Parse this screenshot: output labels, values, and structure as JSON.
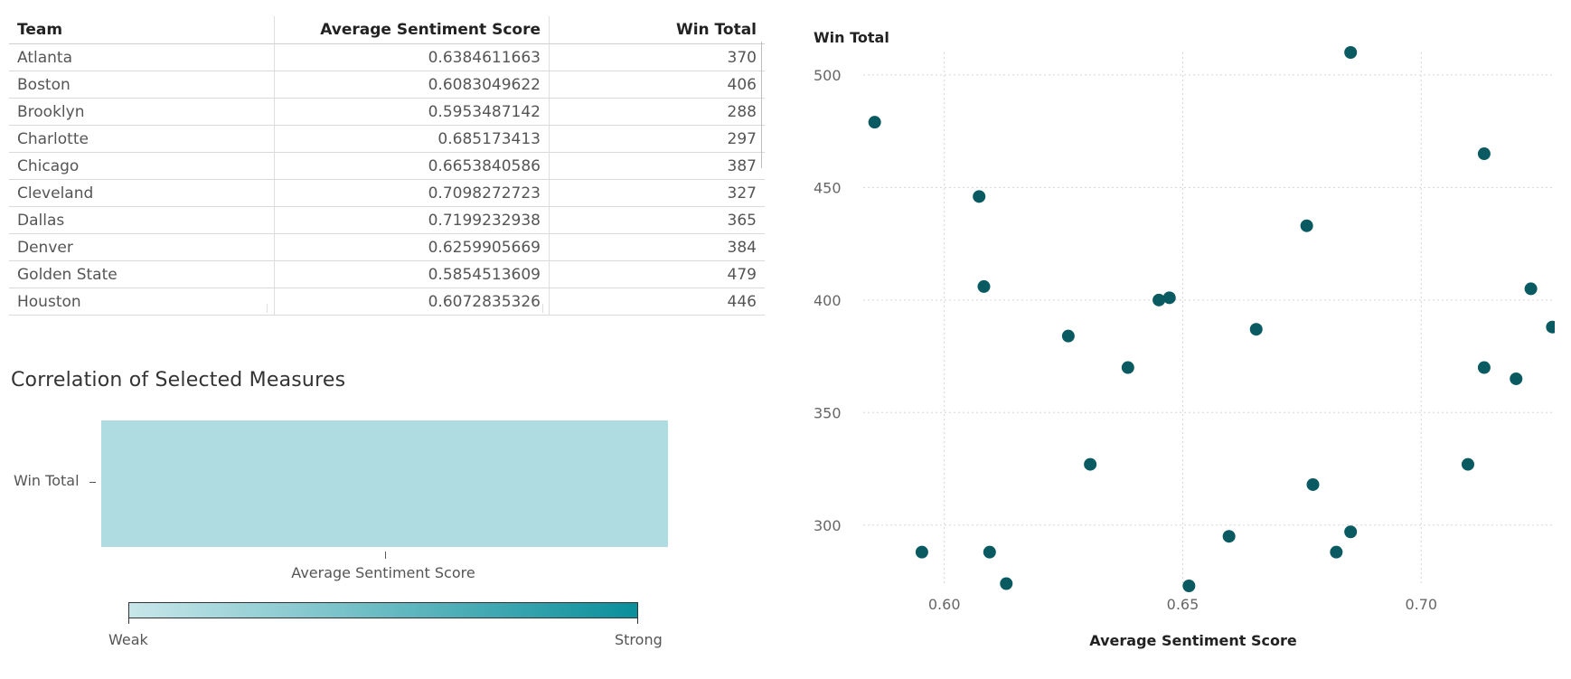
{
  "table": {
    "headers": [
      "Team",
      "Average Sentiment Score",
      "Win Total"
    ],
    "rows": [
      [
        "Atlanta",
        "0.6384611663",
        "370"
      ],
      [
        "Boston",
        "0.6083049622",
        "406"
      ],
      [
        "Brooklyn",
        "0.5953487142",
        "288"
      ],
      [
        "Charlotte",
        "0.685173413",
        "297"
      ],
      [
        "Chicago",
        "0.6653840586",
        "387"
      ],
      [
        "Cleveland",
        "0.7098272723",
        "327"
      ],
      [
        "Dallas",
        "0.7199232938",
        "365"
      ],
      [
        "Denver",
        "0.6259905669",
        "384"
      ],
      [
        "Golden State",
        "0.5854513609",
        "479"
      ],
      [
        "Houston",
        "0.6072835326",
        "446"
      ]
    ]
  },
  "correlation": {
    "title": "Correlation of Selected Measures",
    "row_label": "Win Total",
    "column_label": "Average Sentiment Score",
    "legend_low": "Weak",
    "legend_high": "Strong",
    "cell_color": "#aedce1",
    "gradient_low_color": "#c8e7ea",
    "gradient_high_color": "#0a8f9b"
  },
  "chart_data": {
    "type": "scatter",
    "xlabel": "Average Sentiment Score",
    "ylabel": "Win Total",
    "xlim": [
      0.583,
      0.728
    ],
    "ylim": [
      273,
      510
    ],
    "x_ticks": [
      0.6,
      0.65,
      0.7
    ],
    "x_tick_labels": [
      "0.60",
      "0.65",
      "0.70"
    ],
    "y_ticks": [
      300,
      350,
      400,
      450,
      500
    ],
    "y_tick_labels": [
      "300",
      "350",
      "400",
      "450",
      "500"
    ],
    "grid": true,
    "point_color": "#0a5a62",
    "points": [
      {
        "x": 0.5854,
        "y": 479
      },
      {
        "x": 0.5953,
        "y": 288
      },
      {
        "x": 0.6073,
        "y": 446
      },
      {
        "x": 0.6083,
        "y": 406
      },
      {
        "x": 0.6095,
        "y": 288
      },
      {
        "x": 0.613,
        "y": 274
      },
      {
        "x": 0.626,
        "y": 384
      },
      {
        "x": 0.6306,
        "y": 327
      },
      {
        "x": 0.6385,
        "y": 370
      },
      {
        "x": 0.645,
        "y": 400
      },
      {
        "x": 0.6472,
        "y": 401
      },
      {
        "x": 0.6513,
        "y": 273
      },
      {
        "x": 0.6597,
        "y": 295
      },
      {
        "x": 0.6654,
        "y": 387
      },
      {
        "x": 0.676,
        "y": 433
      },
      {
        "x": 0.6773,
        "y": 318
      },
      {
        "x": 0.6822,
        "y": 288
      },
      {
        "x": 0.6852,
        "y": 297
      },
      {
        "x": 0.6852,
        "y": 510
      },
      {
        "x": 0.7098,
        "y": 327
      },
      {
        "x": 0.7132,
        "y": 465
      },
      {
        "x": 0.7132,
        "y": 370
      },
      {
        "x": 0.7199,
        "y": 365
      },
      {
        "x": 0.723,
        "y": 405
      },
      {
        "x": 0.7275,
        "y": 388
      }
    ]
  }
}
